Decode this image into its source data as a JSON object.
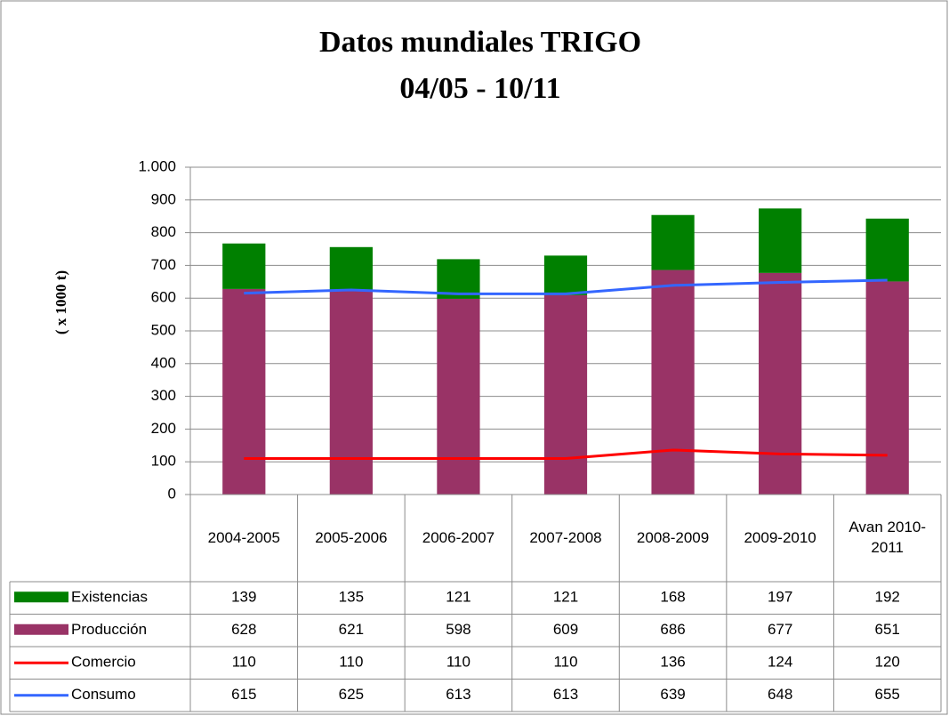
{
  "chart_data": {
    "type": "bar",
    "title": "Datos mundiales TRIGO",
    "subtitle": "04/05 - 10/11",
    "y_label": "( x 1000 t)",
    "categories": [
      "2004-2005",
      "2005-2006",
      "2006-2007",
      "2007-2008",
      "2008-2009",
      "2009-2010",
      "Avan 2010-2011"
    ],
    "series": [
      {
        "name": "Existencias",
        "type": "bar",
        "color": "#008000",
        "values": [
          139,
          135,
          121,
          121,
          168,
          197,
          192
        ]
      },
      {
        "name": "Producción",
        "type": "bar",
        "color": "#993366",
        "values": [
          628,
          621,
          598,
          609,
          686,
          677,
          651
        ]
      },
      {
        "name": "Comercio",
        "type": "line",
        "color": "#ff0000",
        "values": [
          110,
          110,
          110,
          110,
          136,
          124,
          120
        ]
      },
      {
        "name": "Consumo",
        "type": "line",
        "color": "#3366ff",
        "values": [
          615,
          625,
          613,
          613,
          639,
          648,
          655
        ]
      }
    ],
    "ylim": [
      0,
      1000
    ],
    "yticks": [
      0,
      100,
      200,
      300,
      400,
      500,
      600,
      700,
      800,
      900,
      {
        "value": 1000,
        "label": "1.000"
      }
    ],
    "grid": true
  }
}
